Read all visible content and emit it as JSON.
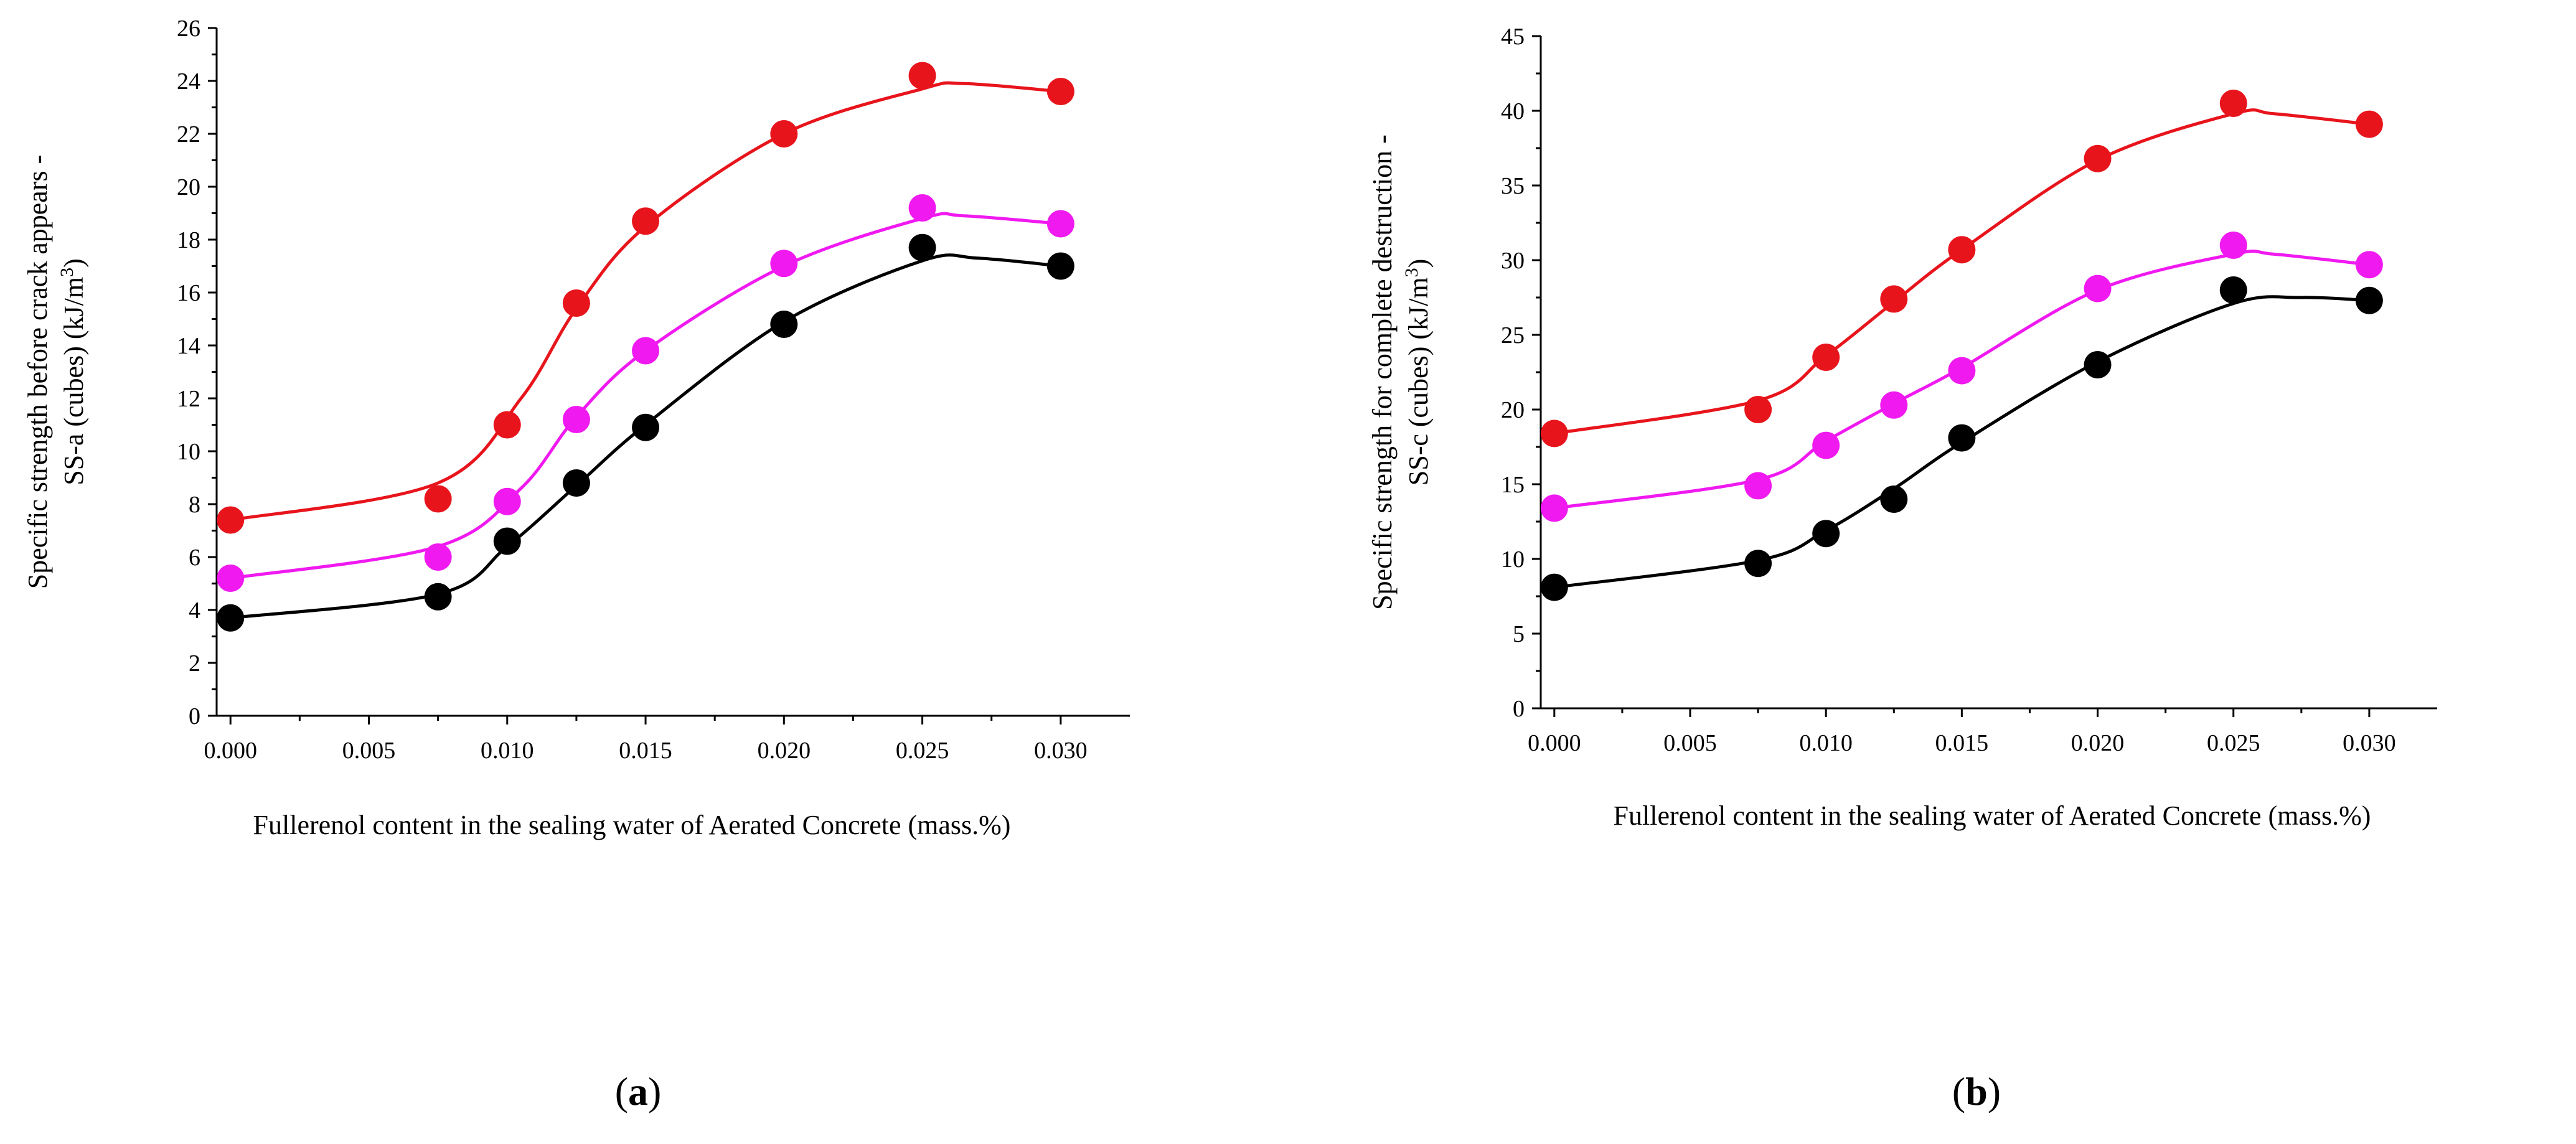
{
  "panels": [
    {
      "prefix": "(",
      "letter": "a",
      "suffix": ")"
    },
    {
      "prefix": "(",
      "letter": "b",
      "suffix": ")"
    }
  ],
  "chart_data": [
    {
      "type": "scatter",
      "title": "",
      "xlabel": "Fullerenol content in the sealing water of  Aerated Concrete (mass.%)",
      "ylabel": [
        "Specific strength before crack appears -",
        "SS-a (cubes) (kJ/m",
        "3",
        ")"
      ],
      "xlim": [
        -0.0005,
        0.0325
      ],
      "ylim": [
        0,
        26
      ],
      "xticks": [
        0.0,
        0.005,
        0.01,
        0.015,
        0.02,
        0.025,
        0.03
      ],
      "xtick_labels": [
        "0.000",
        "0.005",
        "0.010",
        "0.015",
        "0.020",
        "0.025",
        "0.030"
      ],
      "yticks": [
        0,
        2,
        4,
        6,
        8,
        10,
        12,
        14,
        16,
        18,
        20,
        22,
        24,
        26
      ],
      "ytick_labels": [
        "0",
        "2",
        "4",
        "6",
        "8",
        "10",
        "12",
        "14",
        "16",
        "18",
        "20",
        "22",
        "24",
        "26"
      ],
      "legend": "none",
      "grid": false,
      "x": [
        0.0,
        0.0075,
        0.01,
        0.0125,
        0.015,
        0.02,
        0.025,
        0.03
      ],
      "series": [
        {
          "color": "#e8141c",
          "values": [
            7.4,
            8.2,
            11.0,
            15.6,
            18.7,
            22.0,
            24.2,
            23.6
          ],
          "fit_x": [
            0.0,
            0.0075,
            0.0105,
            0.0125,
            0.015,
            0.02,
            0.025,
            0.0265,
            0.03
          ],
          "fit_y": [
            7.4,
            8.8,
            12.0,
            15.4,
            18.5,
            22.0,
            23.7,
            23.9,
            23.6
          ]
        },
        {
          "color": "#f019f0",
          "values": [
            5.2,
            6.0,
            8.1,
            11.2,
            13.8,
            17.1,
            19.2,
            18.6
          ],
          "fit_x": [
            0.0,
            0.0075,
            0.0105,
            0.0125,
            0.015,
            0.02,
            0.025,
            0.0265,
            0.03
          ],
          "fit_y": [
            5.2,
            6.4,
            8.6,
            11.3,
            13.8,
            17.0,
            18.8,
            18.9,
            18.6
          ]
        },
        {
          "color": "#000000",
          "values": [
            3.7,
            4.5,
            6.6,
            8.8,
            10.9,
            14.8,
            17.7,
            17.0
          ],
          "fit_x": [
            0.0,
            0.0075,
            0.01,
            0.0125,
            0.015,
            0.02,
            0.025,
            0.027,
            0.03
          ],
          "fit_y": [
            3.7,
            4.6,
            6.4,
            8.7,
            11.0,
            14.9,
            17.2,
            17.3,
            17.0
          ]
        }
      ]
    },
    {
      "type": "scatter",
      "title": "",
      "xlabel": "Fullerenol content in the sealing water of  Aerated Concrete (mass.%)",
      "ylabel": [
        "Specific strength for complete destruction -",
        "SS-c  (cubes) (kJ/m",
        "3",
        ")"
      ],
      "xlim": [
        -0.0005,
        0.0325
      ],
      "ylim": [
        0,
        45
      ],
      "xticks": [
        0.0,
        0.005,
        0.01,
        0.015,
        0.02,
        0.025,
        0.03
      ],
      "xtick_labels": [
        "0.000",
        "0.005",
        "0.010",
        "0.015",
        "0.020",
        "0.025",
        "0.030"
      ],
      "yticks": [
        0,
        5,
        10,
        15,
        20,
        25,
        30,
        35,
        40,
        45
      ],
      "ytick_labels": [
        "0",
        "5",
        "10",
        "15",
        "20",
        "25",
        "30",
        "35",
        "40",
        "45"
      ],
      "legend": "none",
      "grid": false,
      "x": [
        0.0,
        0.0075,
        0.01,
        0.0125,
        0.015,
        0.02,
        0.025,
        0.03
      ],
      "series": [
        {
          "color": "#e8141c",
          "values": [
            18.4,
            20.0,
            23.5,
            27.4,
            30.7,
            36.8,
            40.5,
            39.1
          ],
          "fit_x": [
            0.0,
            0.0075,
            0.01,
            0.0125,
            0.015,
            0.02,
            0.025,
            0.0265,
            0.03
          ],
          "fit_y": [
            18.4,
            20.6,
            23.6,
            27.2,
            30.7,
            36.7,
            39.8,
            39.8,
            39.1
          ]
        },
        {
          "color": "#f019f0",
          "values": [
            13.4,
            14.9,
            17.6,
            20.3,
            22.6,
            28.1,
            31.0,
            29.7
          ],
          "fit_x": [
            0.0,
            0.0075,
            0.01,
            0.0125,
            0.015,
            0.02,
            0.025,
            0.0265,
            0.03
          ],
          "fit_y": [
            13.4,
            15.3,
            17.9,
            20.4,
            22.8,
            28.0,
            30.4,
            30.4,
            29.7
          ]
        },
        {
          "color": "#000000",
          "values": [
            8.1,
            9.7,
            11.7,
            14.0,
            18.1,
            23.0,
            28.0,
            27.3
          ],
          "fit_x": [
            0.0,
            0.0075,
            0.01,
            0.0125,
            0.015,
            0.02,
            0.025,
            0.0275,
            0.03
          ],
          "fit_y": [
            8.1,
            9.9,
            11.9,
            14.7,
            17.8,
            23.2,
            27.1,
            27.5,
            27.3
          ]
        }
      ]
    }
  ]
}
